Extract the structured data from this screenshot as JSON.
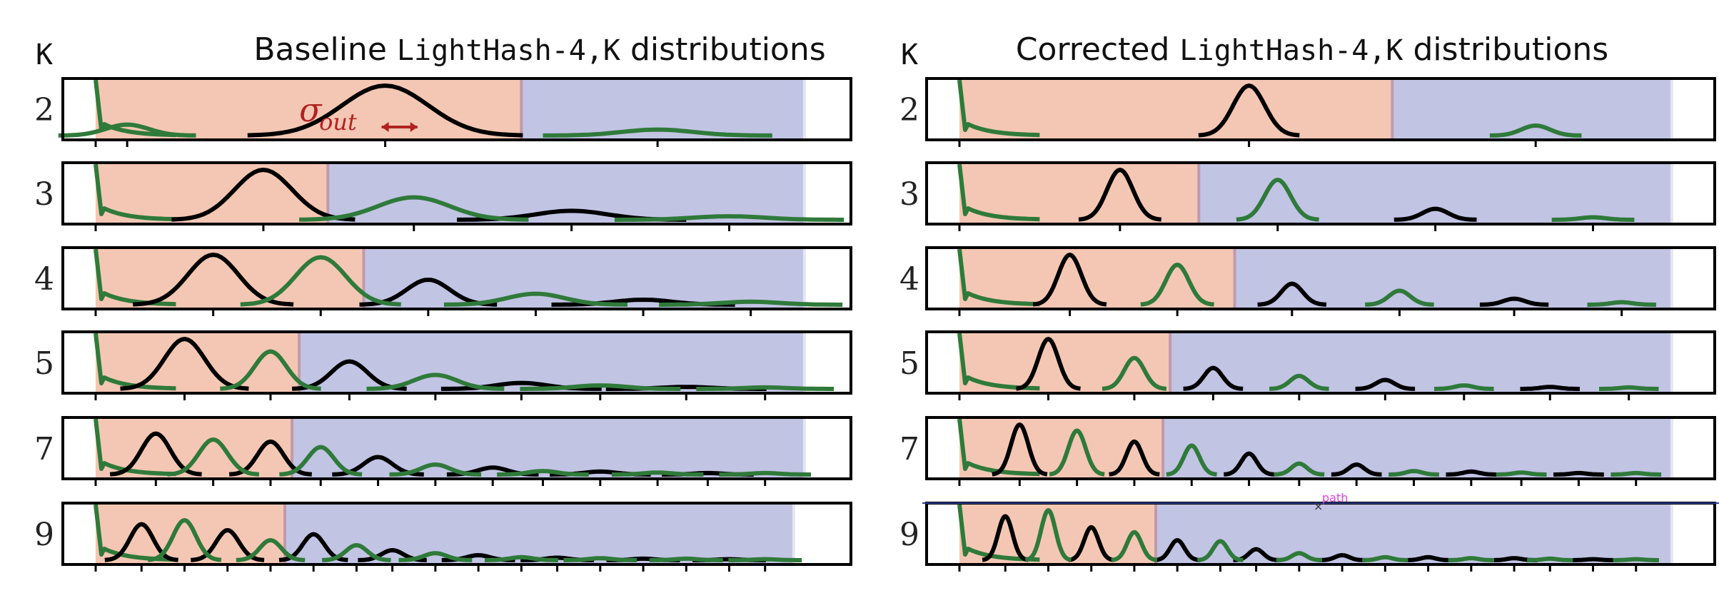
{
  "colors": {
    "orange_region": "#f4c7b4",
    "blue_region": "#c2c4e4",
    "boundary": "#c09aaa",
    "black_series": "#000000",
    "green_series": "#2f7a3a",
    "annotation": "#b22222",
    "path_marker": "#e040e0",
    "path_line": "#2a3a8a"
  },
  "chart_data": [
    {
      "type": "line",
      "title": {
        "prefix": "Baseline",
        "code": "LightHash-4,K",
        "suffix": "distributions"
      },
      "k_header": "K",
      "annotation": {
        "symbol": "σ",
        "subscript": "out",
        "row": 0
      },
      "xlim": [
        0,
        1
      ],
      "rows": [
        {
          "k": "2",
          "boundary": 0.59,
          "region_end": 0.985,
          "black": [
            [
              0.4,
              0.06,
              1.0
            ]
          ],
          "green": [
            [
              0.04,
              0.03,
              0.22
            ],
            [
              0.78,
              0.05,
              0.12
            ]
          ]
        },
        {
          "k": "3",
          "boundary": 0.32,
          "region_end": 0.985,
          "black": [
            [
              0.23,
              0.04,
              1.0
            ],
            [
              0.66,
              0.05,
              0.18
            ]
          ],
          "green": [
            [
              0.44,
              0.05,
              0.45
            ],
            [
              0.88,
              0.05,
              0.07
            ]
          ]
        },
        {
          "k": "4",
          "boundary": 0.37,
          "region_end": 0.985,
          "black": [
            [
              0.16,
              0.035,
              1.0
            ],
            [
              0.46,
              0.03,
              0.5
            ],
            [
              0.76,
              0.04,
              0.1
            ]
          ],
          "green": [
            [
              0.31,
              0.035,
              0.95
            ],
            [
              0.61,
              0.04,
              0.22
            ],
            [
              0.91,
              0.04,
              0.06
            ]
          ]
        },
        {
          "k": "5",
          "boundary": 0.28,
          "region_end": 0.985,
          "black": [
            [
              0.12,
              0.028,
              1.0
            ],
            [
              0.35,
              0.025,
              0.55
            ],
            [
              0.59,
              0.035,
              0.12
            ],
            [
              0.82,
              0.035,
              0.04
            ]
          ],
          "green": [
            [
              0.24,
              0.022,
              0.75
            ],
            [
              0.47,
              0.03,
              0.28
            ],
            [
              0.7,
              0.035,
              0.07
            ],
            [
              0.93,
              0.03,
              0.03
            ]
          ]
        },
        {
          "k": "7",
          "boundary": 0.27,
          "region_end": 0.985,
          "black": [
            [
              0.08,
              0.02,
              0.82
            ],
            [
              0.24,
              0.018,
              0.66
            ],
            [
              0.39,
              0.02,
              0.35
            ],
            [
              0.55,
              0.02,
              0.14
            ],
            [
              0.7,
              0.022,
              0.06
            ],
            [
              0.85,
              0.02,
              0.03
            ]
          ],
          "green": [
            [
              0.16,
              0.02,
              0.7
            ],
            [
              0.31,
              0.018,
              0.55
            ],
            [
              0.47,
              0.02,
              0.2
            ],
            [
              0.62,
              0.02,
              0.07
            ],
            [
              0.78,
              0.02,
              0.04
            ],
            [
              0.93,
              0.02,
              0.03
            ]
          ]
        },
        {
          "k": "9",
          "boundary": 0.26,
          "region_end": 0.97,
          "black": [
            [
              0.06,
              0.016,
              0.72
            ],
            [
              0.18,
              0.016,
              0.6
            ],
            [
              0.3,
              0.015,
              0.52
            ],
            [
              0.41,
              0.015,
              0.2
            ],
            [
              0.53,
              0.016,
              0.1
            ],
            [
              0.64,
              0.016,
              0.05
            ],
            [
              0.76,
              0.016,
              0.03
            ],
            [
              0.88,
              0.016,
              0.02
            ]
          ],
          "green": [
            [
              0.12,
              0.016,
              0.8
            ],
            [
              0.24,
              0.015,
              0.4
            ],
            [
              0.36,
              0.015,
              0.3
            ],
            [
              0.47,
              0.016,
              0.14
            ],
            [
              0.59,
              0.016,
              0.06
            ],
            [
              0.7,
              0.016,
              0.04
            ],
            [
              0.82,
              0.016,
              0.03
            ],
            [
              0.93,
              0.016,
              0.02
            ]
          ]
        }
      ]
    },
    {
      "type": "line",
      "title": {
        "prefix": "Corrected",
        "code": "LightHash-4,K",
        "suffix": "distributions"
      },
      "k_header": "K",
      "path_marker": {
        "symbol": "×",
        "label": "path",
        "row": 5
      },
      "xlim": [
        0,
        1
      ],
      "rows": [
        {
          "k": "2",
          "boundary": 0.6,
          "region_end": 0.99,
          "black": [
            [
              0.4,
              0.022,
              1.0
            ]
          ],
          "green": [
            [
              0.8,
              0.02,
              0.2
            ]
          ]
        },
        {
          "k": "3",
          "boundary": 0.33,
          "region_end": 0.99,
          "black": [
            [
              0.22,
              0.018,
              1.0
            ],
            [
              0.66,
              0.018,
              0.22
            ]
          ],
          "green": [
            [
              0.44,
              0.018,
              0.8
            ],
            [
              0.88,
              0.018,
              0.05
            ]
          ]
        },
        {
          "k": "4",
          "boundary": 0.38,
          "region_end": 0.99,
          "black": [
            [
              0.15,
              0.016,
              1.0
            ],
            [
              0.46,
              0.015,
              0.42
            ],
            [
              0.77,
              0.015,
              0.12
            ]
          ],
          "green": [
            [
              0.3,
              0.016,
              0.8
            ],
            [
              0.61,
              0.015,
              0.28
            ],
            [
              0.92,
              0.015,
              0.05
            ]
          ]
        },
        {
          "k": "5",
          "boundary": 0.29,
          "region_end": 0.99,
          "black": [
            [
              0.12,
              0.014,
              1.0
            ],
            [
              0.35,
              0.013,
              0.42
            ],
            [
              0.59,
              0.013,
              0.18
            ],
            [
              0.82,
              0.013,
              0.04
            ]
          ],
          "green": [
            [
              0.24,
              0.014,
              0.62
            ],
            [
              0.47,
              0.013,
              0.26
            ],
            [
              0.7,
              0.013,
              0.07
            ],
            [
              0.93,
              0.013,
              0.03
            ]
          ]
        },
        {
          "k": "7",
          "boundary": 0.28,
          "region_end": 0.99,
          "black": [
            [
              0.08,
              0.012,
              1.0
            ],
            [
              0.24,
              0.011,
              0.66
            ],
            [
              0.4,
              0.011,
              0.42
            ],
            [
              0.55,
              0.011,
              0.2
            ],
            [
              0.71,
              0.011,
              0.06
            ],
            [
              0.86,
              0.011,
              0.03
            ]
          ],
          "green": [
            [
              0.16,
              0.012,
              0.88
            ],
            [
              0.32,
              0.011,
              0.58
            ],
            [
              0.47,
              0.011,
              0.22
            ],
            [
              0.63,
              0.011,
              0.07
            ],
            [
              0.78,
              0.011,
              0.04
            ],
            [
              0.94,
              0.011,
              0.03
            ]
          ]
        },
        {
          "k": "9",
          "boundary": 0.27,
          "region_end": 0.99,
          "black": [
            [
              0.06,
              0.01,
              0.88
            ],
            [
              0.18,
              0.01,
              0.66
            ],
            [
              0.3,
              0.01,
              0.4
            ],
            [
              0.41,
              0.01,
              0.22
            ],
            [
              0.53,
              0.01,
              0.1
            ],
            [
              0.65,
              0.01,
              0.06
            ],
            [
              0.77,
              0.01,
              0.04
            ],
            [
              0.88,
              0.01,
              0.02
            ]
          ],
          "green": [
            [
              0.12,
              0.01,
              1.0
            ],
            [
              0.24,
              0.01,
              0.56
            ],
            [
              0.36,
              0.01,
              0.38
            ],
            [
              0.47,
              0.01,
              0.14
            ],
            [
              0.59,
              0.01,
              0.06
            ],
            [
              0.71,
              0.01,
              0.04
            ],
            [
              0.82,
              0.01,
              0.03
            ],
            [
              0.94,
              0.01,
              0.02
            ]
          ]
        }
      ]
    }
  ]
}
